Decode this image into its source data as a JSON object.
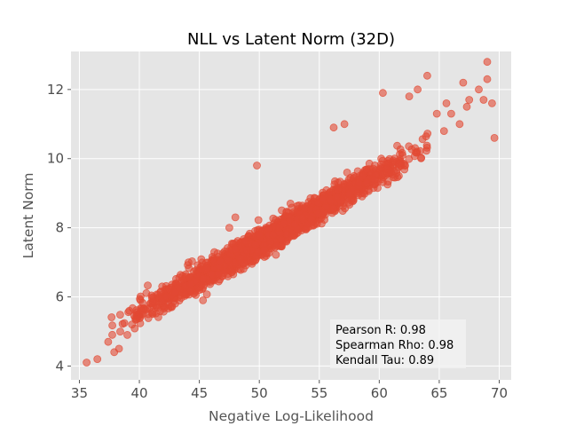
{
  "chart_data": {
    "type": "scatter",
    "title": "NLL vs Latent Norm (32D)",
    "xlabel": "Negative Log-Likelihood",
    "ylabel": "Latent Norm",
    "xlim": [
      34.3,
      71.0
    ],
    "ylim": [
      3.6,
      13.1
    ],
    "xticks": [
      35,
      40,
      45,
      50,
      55,
      60,
      65,
      70
    ],
    "yticks": [
      4,
      6,
      8,
      10,
      12
    ],
    "grid": true,
    "marker_color": "#E24A33",
    "marker_alpha": 0.6,
    "trend": {
      "slope": 0.2,
      "intercept": -2.45
    },
    "cloud": {
      "x_range": [
        37.5,
        64.5
      ],
      "point_count": 2200,
      "spread_sd": 0.18
    },
    "points": [
      {
        "x": 35.6,
        "y": 4.1
      },
      {
        "x": 36.5,
        "y": 4.2
      },
      {
        "x": 37.4,
        "y": 4.7
      },
      {
        "x": 37.9,
        "y": 4.4
      },
      {
        "x": 38.3,
        "y": 4.5
      },
      {
        "x": 39.0,
        "y": 4.9
      },
      {
        "x": 41.9,
        "y": 6.3
      },
      {
        "x": 42.7,
        "y": 5.7
      },
      {
        "x": 44.1,
        "y": 7.0
      },
      {
        "x": 45.3,
        "y": 5.9
      },
      {
        "x": 47.5,
        "y": 8.0
      },
      {
        "x": 48.0,
        "y": 8.3
      },
      {
        "x": 49.8,
        "y": 9.8
      },
      {
        "x": 52.6,
        "y": 8.7
      },
      {
        "x": 56.2,
        "y": 10.9
      },
      {
        "x": 57.1,
        "y": 11.0
      },
      {
        "x": 58.3,
        "y": 9.3
      },
      {
        "x": 60.3,
        "y": 11.9
      },
      {
        "x": 62.5,
        "y": 11.8
      },
      {
        "x": 63.2,
        "y": 12.0
      },
      {
        "x": 64.0,
        "y": 12.4
      },
      {
        "x": 64.8,
        "y": 11.3
      },
      {
        "x": 65.4,
        "y": 10.8
      },
      {
        "x": 65.6,
        "y": 11.6
      },
      {
        "x": 66.0,
        "y": 11.3
      },
      {
        "x": 66.7,
        "y": 11.0
      },
      {
        "x": 67.0,
        "y": 12.2
      },
      {
        "x": 67.3,
        "y": 11.5
      },
      {
        "x": 67.5,
        "y": 11.7
      },
      {
        "x": 68.3,
        "y": 12.0
      },
      {
        "x": 68.7,
        "y": 11.7
      },
      {
        "x": 69.0,
        "y": 12.3
      },
      {
        "x": 69.0,
        "y": 12.8
      },
      {
        "x": 69.4,
        "y": 11.6
      },
      {
        "x": 69.6,
        "y": 10.6
      }
    ]
  },
  "stats": {
    "pearson": "Pearson R: 0.98",
    "spearman": "Spearman Rho: 0.98",
    "kendall": "Kendall Tau: 0.89"
  }
}
